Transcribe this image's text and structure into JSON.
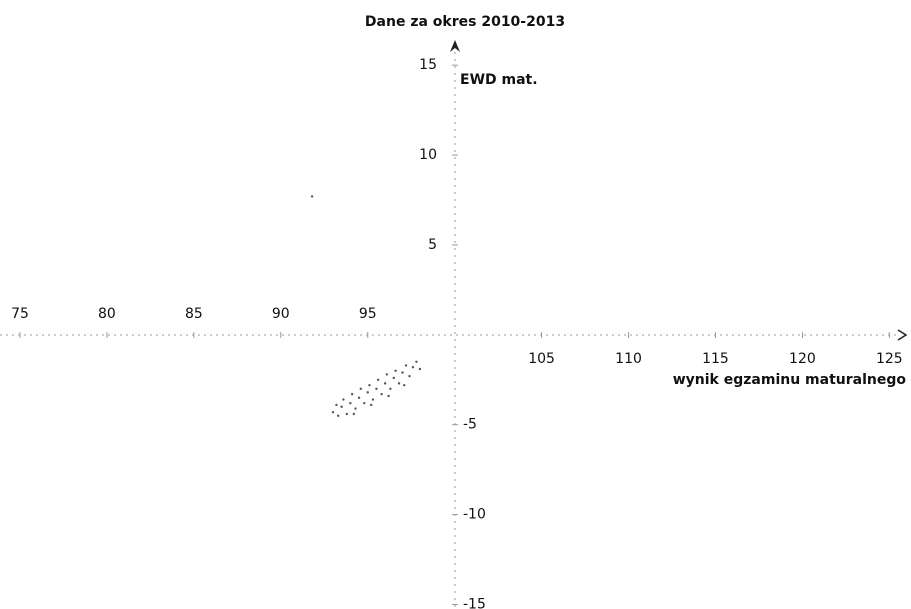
{
  "chart_data": {
    "type": "scatter",
    "title": "Dane za okres 2010-2013",
    "y_label": "EWD mat.",
    "x_label": "wynik egzaminu maturalnego",
    "color": "#555555",
    "xlim": [
      73.85,
      125.9
    ],
    "ylim": [
      -15.25,
      16.4
    ],
    "xticks": [
      75,
      80,
      85,
      90,
      95,
      105,
      110,
      115,
      120,
      125
    ],
    "yticks": [
      -15,
      -10,
      -5,
      5,
      10,
      15
    ],
    "x": [
      93.0,
      93.2,
      93.3,
      93.5,
      93.6,
      93.8,
      94.0,
      94.1,
      94.3,
      94.5,
      94.6,
      94.8,
      95.0,
      95.1,
      95.3,
      95.5,
      95.6,
      95.8,
      96.0,
      96.1,
      96.3,
      96.5,
      96.6,
      96.8,
      97.0,
      97.2,
      97.4,
      97.6,
      97.8,
      98.0,
      94.2,
      95.2,
      96.2,
      97.1,
      91.8
    ],
    "values": [
      -4.3,
      -3.9,
      -4.5,
      -4.0,
      -3.6,
      -4.4,
      -3.8,
      -3.3,
      -4.1,
      -3.5,
      -3.0,
      -3.8,
      -3.2,
      -2.8,
      -3.6,
      -3.0,
      -2.5,
      -3.3,
      -2.7,
      -2.2,
      -3.0,
      -2.4,
      -2.0,
      -2.7,
      -2.1,
      -1.7,
      -2.3,
      -1.8,
      -1.5,
      -1.9,
      -4.4,
      -3.9,
      -3.4,
      -2.8,
      7.7
    ]
  }
}
